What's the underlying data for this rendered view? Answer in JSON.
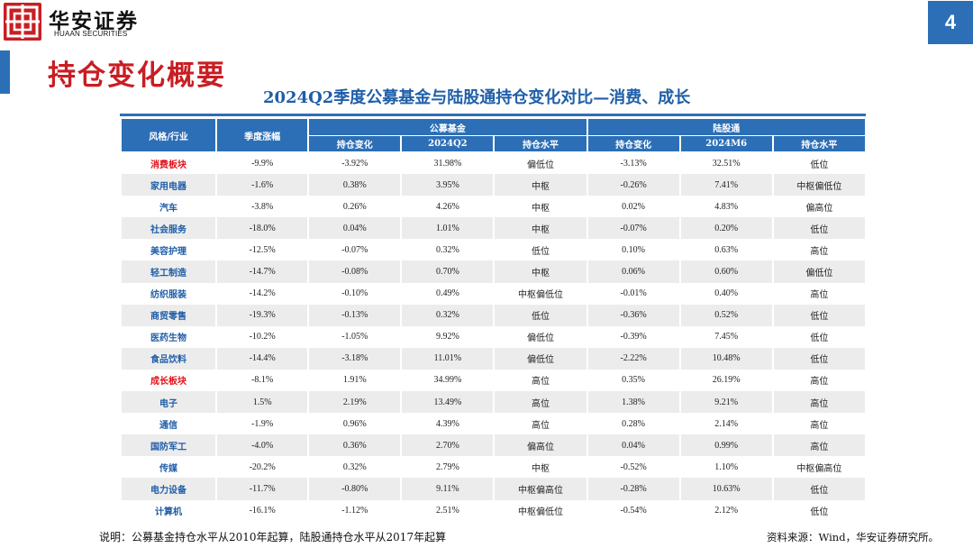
{
  "brand": {
    "name_cn": "华安证券",
    "name_en": "HUAAN SECURITIES"
  },
  "page_number": "4",
  "title": "持仓变化概要",
  "table_title": "2024Q2季度公募基金与陆股通持仓变化对比—消费、成长",
  "table": {
    "col_industry": "风格/行业",
    "col_change": "季度涨幅",
    "group_fund": "公募基金",
    "group_hk": "陆股通",
    "fund_cols": [
      "持仓变化",
      "2024Q2",
      "持仓水平"
    ],
    "hk_cols": [
      "持仓变化",
      "2024M6",
      "持仓水平"
    ],
    "rows": [
      {
        "name": "消费板块",
        "red": true,
        "chg": "-9.9%",
        "f_delta": "-3.92%",
        "f_val": "31.98%",
        "f_level": "偏低位",
        "h_delta": "-3.13%",
        "h_val": "32.51%",
        "h_level": "低位"
      },
      {
        "name": "家用电器",
        "red": false,
        "chg": "-1.6%",
        "f_delta": "0.38%",
        "f_val": "3.95%",
        "f_level": "中枢",
        "h_delta": "-0.26%",
        "h_val": "7.41%",
        "h_level": "中枢偏低位"
      },
      {
        "name": "汽车",
        "red": false,
        "chg": "-3.8%",
        "f_delta": "0.26%",
        "f_val": "4.26%",
        "f_level": "中枢",
        "h_delta": "0.02%",
        "h_val": "4.83%",
        "h_level": "偏高位"
      },
      {
        "name": "社会服务",
        "red": false,
        "chg": "-18.0%",
        "f_delta": "0.04%",
        "f_val": "1.01%",
        "f_level": "中枢",
        "h_delta": "-0.07%",
        "h_val": "0.20%",
        "h_level": "低位"
      },
      {
        "name": "美容护理",
        "red": false,
        "chg": "-12.5%",
        "f_delta": "-0.07%",
        "f_val": "0.32%",
        "f_level": "低位",
        "h_delta": "0.10%",
        "h_val": "0.63%",
        "h_level": "高位"
      },
      {
        "name": "轻工制造",
        "red": false,
        "chg": "-14.7%",
        "f_delta": "-0.08%",
        "f_val": "0.70%",
        "f_level": "中枢",
        "h_delta": "0.06%",
        "h_val": "0.60%",
        "h_level": "偏低位"
      },
      {
        "name": "纺织服装",
        "red": false,
        "chg": "-14.2%",
        "f_delta": "-0.10%",
        "f_val": "0.49%",
        "f_level": "中枢偏低位",
        "h_delta": "-0.01%",
        "h_val": "0.40%",
        "h_level": "高位"
      },
      {
        "name": "商贸零售",
        "red": false,
        "chg": "-19.3%",
        "f_delta": "-0.13%",
        "f_val": "0.32%",
        "f_level": "低位",
        "h_delta": "-0.36%",
        "h_val": "0.52%",
        "h_level": "低位"
      },
      {
        "name": "医药生物",
        "red": false,
        "chg": "-10.2%",
        "f_delta": "-1.05%",
        "f_val": "9.92%",
        "f_level": "偏低位",
        "h_delta": "-0.39%",
        "h_val": "7.45%",
        "h_level": "低位"
      },
      {
        "name": "食品饮料",
        "red": false,
        "chg": "-14.4%",
        "f_delta": "-3.18%",
        "f_val": "11.01%",
        "f_level": "偏低位",
        "h_delta": "-2.22%",
        "h_val": "10.48%",
        "h_level": "低位"
      },
      {
        "name": "成长板块",
        "red": true,
        "chg": "-8.1%",
        "f_delta": "1.91%",
        "f_val": "34.99%",
        "f_level": "高位",
        "h_delta": "0.35%",
        "h_val": "26.19%",
        "h_level": "高位"
      },
      {
        "name": "电子",
        "red": false,
        "chg": "1.5%",
        "f_delta": "2.19%",
        "f_val": "13.49%",
        "f_level": "高位",
        "h_delta": "1.38%",
        "h_val": "9.21%",
        "h_level": "高位"
      },
      {
        "name": "通信",
        "red": false,
        "chg": "-1.9%",
        "f_delta": "0.96%",
        "f_val": "4.39%",
        "f_level": "高位",
        "h_delta": "0.28%",
        "h_val": "2.14%",
        "h_level": "高位"
      },
      {
        "name": "国防军工",
        "red": false,
        "chg": "-4.0%",
        "f_delta": "0.36%",
        "f_val": "2.70%",
        "f_level": "偏高位",
        "h_delta": "0.04%",
        "h_val": "0.99%",
        "h_level": "高位"
      },
      {
        "name": "传媒",
        "red": false,
        "chg": "-20.2%",
        "f_delta": "0.32%",
        "f_val": "2.79%",
        "f_level": "中枢",
        "h_delta": "-0.52%",
        "h_val": "1.10%",
        "h_level": "中枢偏高位"
      },
      {
        "name": "电力设备",
        "red": false,
        "chg": "-11.7%",
        "f_delta": "-0.80%",
        "f_val": "9.11%",
        "f_level": "中枢偏高位",
        "h_delta": "-0.28%",
        "h_val": "10.63%",
        "h_level": "低位"
      },
      {
        "name": "计算机",
        "red": false,
        "chg": "-16.1%",
        "f_delta": "-1.12%",
        "f_val": "2.51%",
        "f_level": "中枢偏低位",
        "h_delta": "-0.54%",
        "h_val": "2.12%",
        "h_level": "低位"
      }
    ]
  },
  "footnote": "说明：公募基金持仓水平从2010年起算，陆股通持仓水平从2017年起算",
  "source": "资料来源：Wind，华安证券研究所。",
  "colors": {
    "brand_red": "#c81e23",
    "brand_blue": "#2c6fb6",
    "title_blue": "#1f5ea8",
    "row_stripe": "#ececec"
  }
}
